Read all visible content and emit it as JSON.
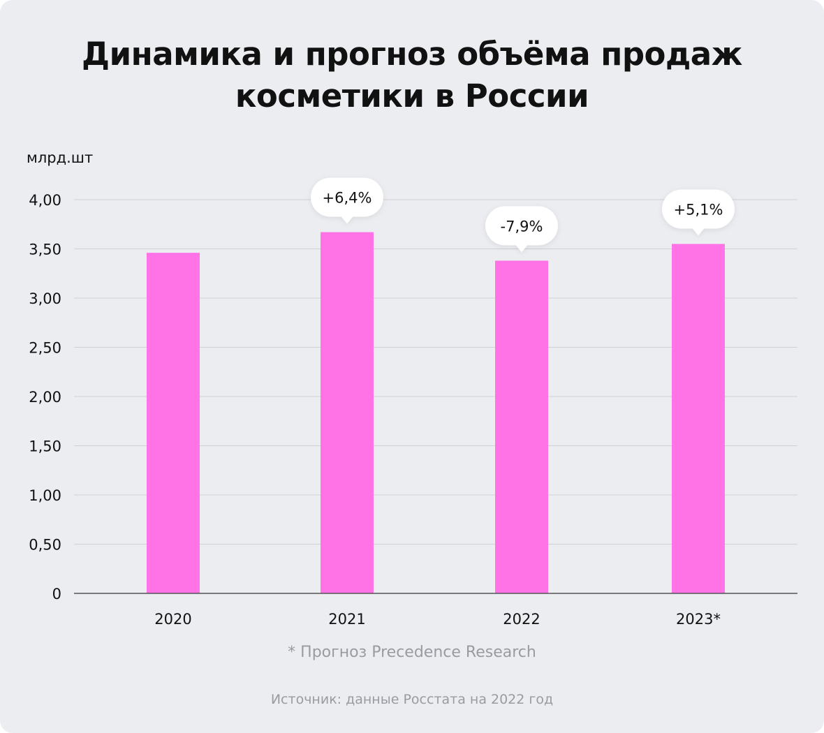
{
  "title_line1": "Динамика и прогноз объёма продаж",
  "title_line2": "косметики в России",
  "footnote": "* Прогноз Precedence Research",
  "source": "Источник: данные Росстата на 2022 год",
  "chart_data": {
    "type": "bar",
    "ylabel": "млрд.шт",
    "categories": [
      "2020",
      "2021",
      "2022",
      "2023*"
    ],
    "values": [
      3.46,
      3.67,
      3.38,
      3.55
    ],
    "annotations": [
      "",
      "+6,4%",
      "-7,9%",
      "+5,1%"
    ],
    "ylim": [
      0,
      4
    ],
    "yticks": [
      0,
      0.5,
      1,
      1.5,
      2,
      2.5,
      3,
      3.5,
      4
    ],
    "ytick_labels": [
      "0",
      "0,50",
      "1,00",
      "1,50",
      "2,00",
      "2,50",
      "3,00",
      "3,50",
      "4,00"
    ],
    "grid": true,
    "bar_color": "#ff73e6"
  }
}
